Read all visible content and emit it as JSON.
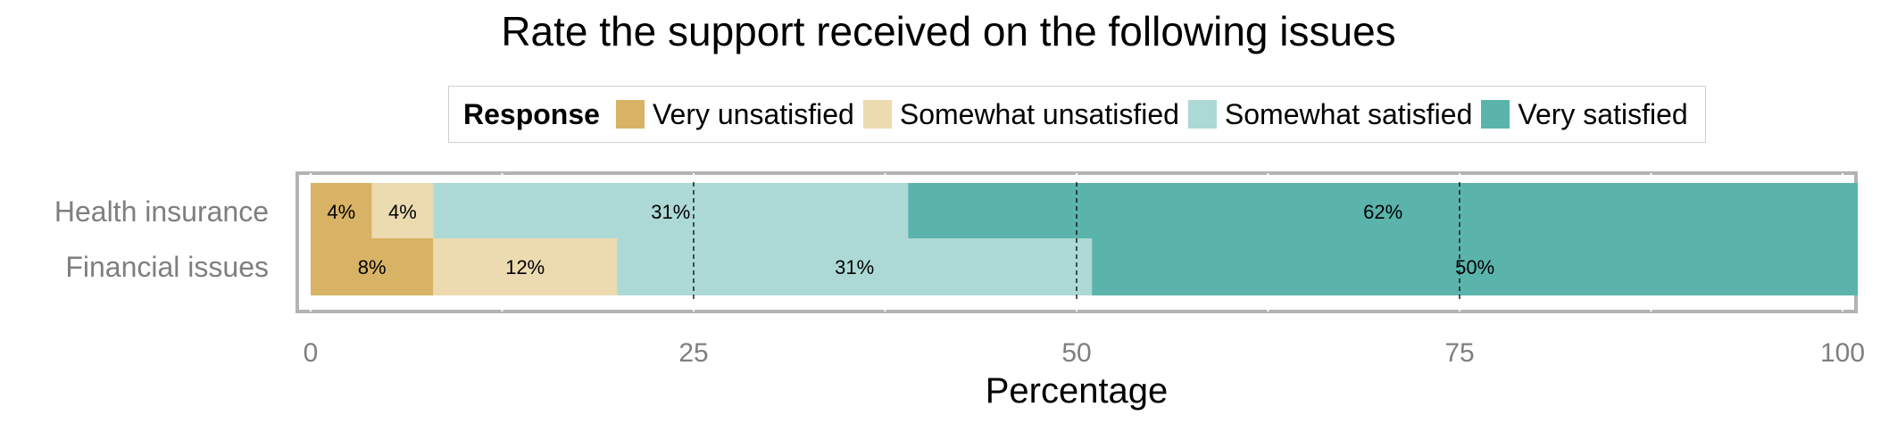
{
  "chart_data": {
    "type": "bar",
    "orientation": "horizontal",
    "stacked": true,
    "title": "Rate the support received on the following issues",
    "xlabel": "Percentage",
    "ylabel": "",
    "xlim": [
      0,
      100
    ],
    "xticks": [
      0,
      25,
      50,
      75,
      100
    ],
    "categories": [
      "Health insurance",
      "Financial issues"
    ],
    "legend": {
      "title": "Response",
      "position": "top"
    },
    "series": [
      {
        "name": "Very unsatisfied",
        "color": "#d8b365",
        "values": [
          4,
          8
        ],
        "labels": [
          "4%",
          "8%"
        ]
      },
      {
        "name": "Somewhat unsatisfied",
        "color": "#ecdab0",
        "values": [
          4,
          12
        ],
        "labels": [
          "4%",
          "12%"
        ]
      },
      {
        "name": "Somewhat satisfied",
        "color": "#acd9d5",
        "values": [
          31,
          31
        ],
        "labels": [
          "31%",
          "31%"
        ]
      },
      {
        "name": "Very satisfied",
        "color": "#5ab4ac",
        "values": [
          62,
          50
        ],
        "labels": [
          "62%",
          "50%"
        ]
      }
    ]
  }
}
